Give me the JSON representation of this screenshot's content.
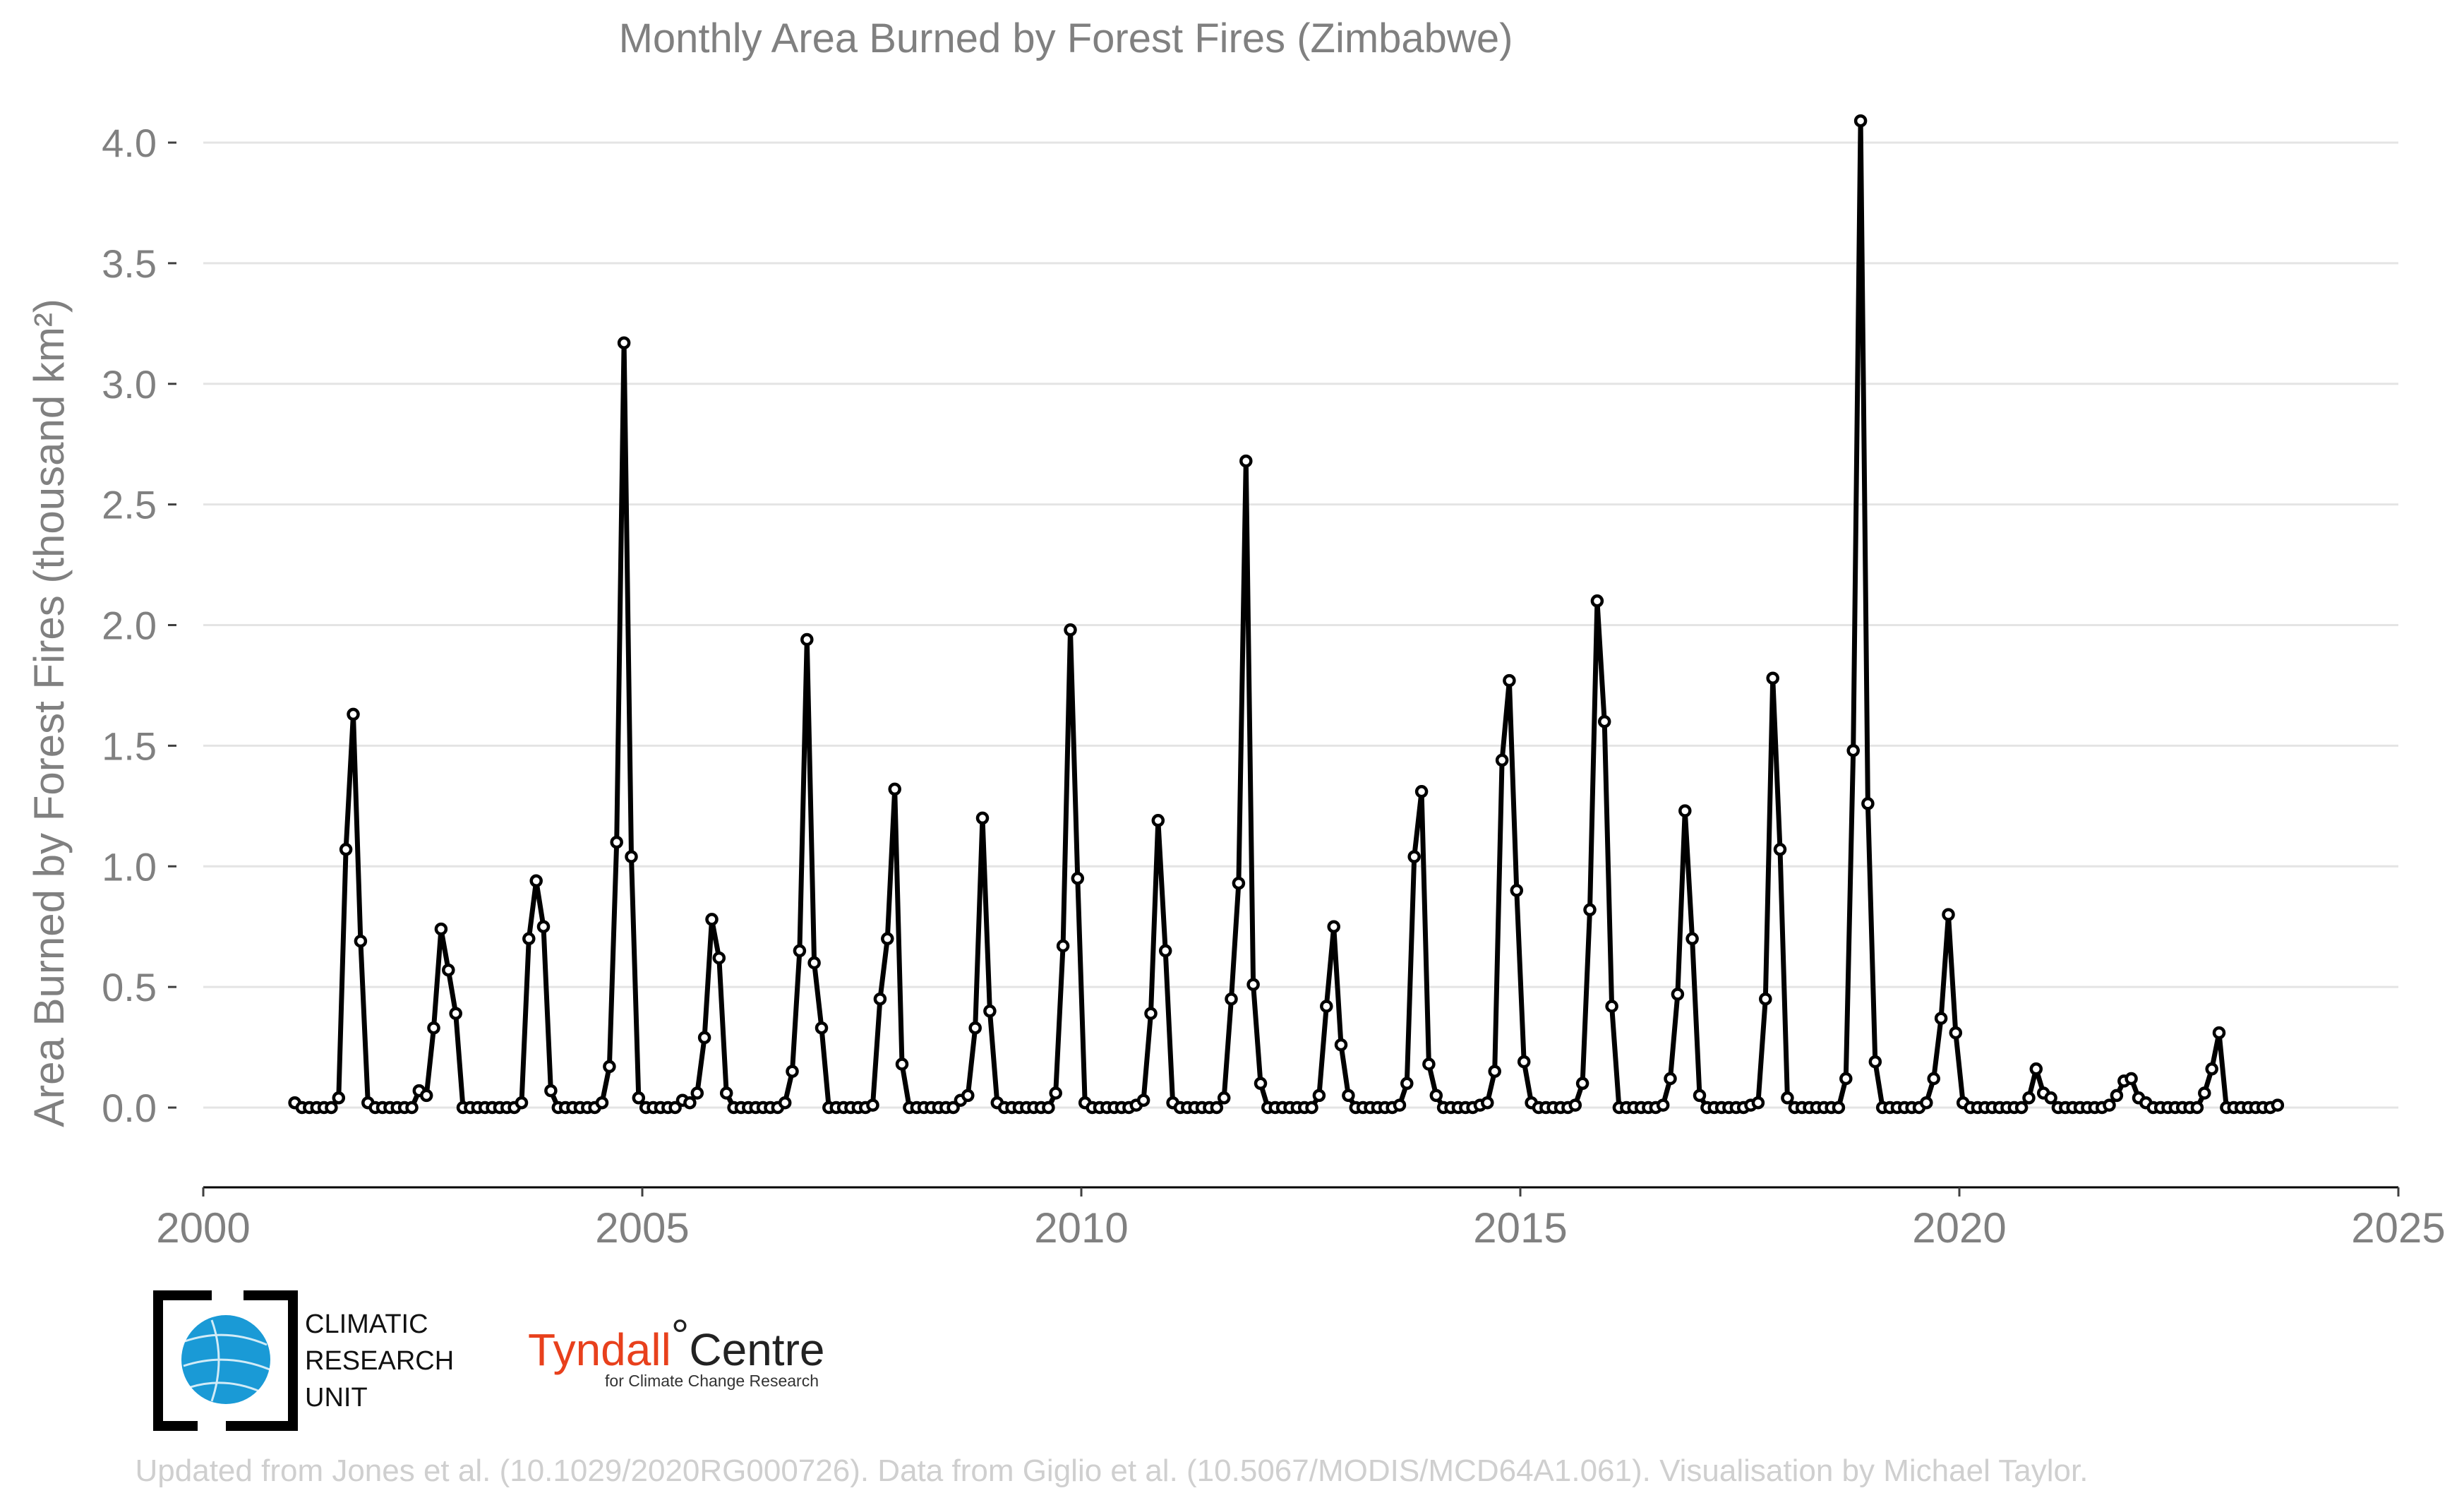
{
  "chart_data": {
    "type": "line",
    "title": "Monthly Area Burned by Forest Fires (Zimbabwe)",
    "ylabel": "Area Burned by Forest Fires (thousand km²)",
    "xlabel": "",
    "xlim": [
      2000,
      2025
    ],
    "ylim": [
      -0.33,
      4.1
    ],
    "x_ticks": [
      "2000",
      "2005",
      "2010",
      "2015",
      "2020",
      "2025"
    ],
    "y_ticks": [
      "0.0",
      "0.5",
      "1.0",
      "1.5",
      "2.0",
      "2.5",
      "3.0",
      "3.5",
      "4.0"
    ],
    "grid": "horizontal",
    "start": "2001-01",
    "frequency": "monthly",
    "series": [
      {
        "color": "#000000",
        "marker": "open-circle",
        "values": [
          0.02,
          0.0,
          0.0,
          0.0,
          0.0,
          0.0,
          0.04,
          1.07,
          1.63,
          0.69,
          0.02,
          0.0,
          0.0,
          0.0,
          0.0,
          0.0,
          0.0,
          0.07,
          0.05,
          0.33,
          0.74,
          0.57,
          0.39,
          0.0,
          0.0,
          0.0,
          0.0,
          0.0,
          0.0,
          0.0,
          0.0,
          0.02,
          0.7,
          0.94,
          0.75,
          0.07,
          0.0,
          0.0,
          0.0,
          0.0,
          0.0,
          0.0,
          0.02,
          0.17,
          1.1,
          3.17,
          1.04,
          0.04,
          0.0,
          0.0,
          0.0,
          0.0,
          0.0,
          0.03,
          0.02,
          0.06,
          0.29,
          0.78,
          0.62,
          0.06,
          0.0,
          0.0,
          0.0,
          0.0,
          0.0,
          0.0,
          0.0,
          0.02,
          0.15,
          0.65,
          1.94,
          0.6,
          0.33,
          0.0,
          0.0,
          0.0,
          0.0,
          0.0,
          0.0,
          0.01,
          0.45,
          0.7,
          1.32,
          0.18,
          0.0,
          0.0,
          0.0,
          0.0,
          0.0,
          0.0,
          0.0,
          0.03,
          0.05,
          0.33,
          1.2,
          0.4,
          0.02,
          0.0,
          0.0,
          0.0,
          0.0,
          0.0,
          0.0,
          0.0,
          0.06,
          0.67,
          1.98,
          0.95,
          0.02,
          0.0,
          0.0,
          0.0,
          0.0,
          0.0,
          0.0,
          0.01,
          0.03,
          0.39,
          1.19,
          0.65,
          0.02,
          0.0,
          0.0,
          0.0,
          0.0,
          0.0,
          0.0,
          0.04,
          0.45,
          0.93,
          2.68,
          0.51,
          0.1,
          0.0,
          0.0,
          0.0,
          0.0,
          0.0,
          0.0,
          0.0,
          0.05,
          0.42,
          0.75,
          0.26,
          0.05,
          0.0,
          0.0,
          0.0,
          0.0,
          0.0,
          0.0,
          0.01,
          0.1,
          1.04,
          1.31,
          0.18,
          0.05,
          0.0,
          0.0,
          0.0,
          0.0,
          0.0,
          0.01,
          0.02,
          0.15,
          1.44,
          1.77,
          0.9,
          0.19,
          0.02,
          0.0,
          0.0,
          0.0,
          0.0,
          0.0,
          0.01,
          0.1,
          0.82,
          2.1,
          1.6,
          0.42,
          0.0,
          0.0,
          0.0,
          0.0,
          0.0,
          0.0,
          0.01,
          0.12,
          0.47,
          1.23,
          0.7,
          0.05,
          0.0,
          0.0,
          0.0,
          0.0,
          0.0,
          0.0,
          0.01,
          0.02,
          0.45,
          1.78,
          1.07,
          0.04,
          0.0,
          0.0,
          0.0,
          0.0,
          0.0,
          0.0,
          0.0,
          0.12,
          1.48,
          4.09,
          1.26,
          0.19,
          0.0,
          0.0,
          0.0,
          0.0,
          0.0,
          0.0,
          0.02,
          0.12,
          0.37,
          0.8,
          0.31,
          0.02,
          0.0,
          0.0,
          0.0,
          0.0,
          0.0,
          0.0,
          0.0,
          0.0,
          0.04,
          0.16,
          0.06,
          0.04,
          0.0,
          0.0,
          0.0,
          0.0,
          0.0,
          0.0,
          0.0,
          0.01,
          0.05,
          0.11,
          0.12,
          0.04,
          0.02,
          0.0,
          0.0,
          0.0,
          0.0,
          0.0,
          0.0,
          0.0,
          0.06,
          0.16,
          0.31,
          0.0,
          0.0,
          0.0,
          0.0,
          0.0,
          0.0,
          0.0,
          0.01
        ]
      }
    ]
  },
  "logos": {
    "cru_lines": [
      "CLIMATIC",
      "RESEARCH",
      "UNIT"
    ],
    "tyndall_main": "Tyndall",
    "tyndall_degree": "°",
    "tyndall_centre": "Centre",
    "tyndall_sub": "for Climate Change Research"
  },
  "credit": "Updated from Jones et al. (10.1029/2020RG000726). Data from Giglio et al. (10.5067/MODIS/MCD64A1.061). Visualisation by Michael Taylor."
}
